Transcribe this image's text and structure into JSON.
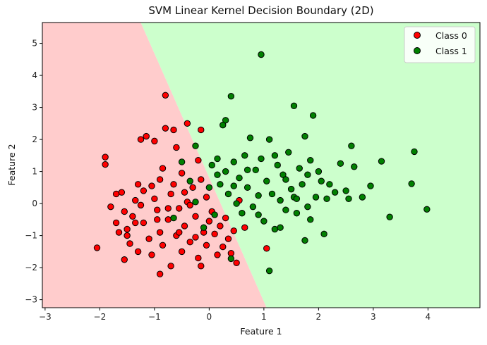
{
  "chart_data": {
    "type": "scatter",
    "title": "SVM Linear Kernel Decision Boundary (2D)",
    "xlabel": "Feature 1",
    "ylabel": "Feature 2",
    "xlim": [
      -3.05,
      4.95
    ],
    "ylim": [
      -3.25,
      5.65
    ],
    "x_ticks": [
      -3,
      -2,
      -1,
      0,
      1,
      2,
      3,
      4
    ],
    "y_ticks": [
      -3,
      -2,
      -1,
      0,
      1,
      2,
      3,
      4,
      5
    ],
    "grid": false,
    "legend_position": "top-right",
    "decision_regions": {
      "class_0_color": "#ffcccc",
      "class_1_color": "#ccffcc",
      "boundary_points": [
        [
          -1.25,
          5.65
        ],
        [
          1.05,
          -3.25
        ]
      ]
    },
    "series": [
      {
        "name": "Class 0",
        "color": "#ff0000",
        "edge_color": "#000000",
        "points": [
          [
            -2.05,
            -1.38
          ],
          [
            -1.9,
            1.45
          ],
          [
            -1.9,
            1.22
          ],
          [
            -1.7,
            0.3
          ],
          [
            -1.7,
            -0.6
          ],
          [
            -1.6,
            0.35
          ],
          [
            -1.55,
            -0.25
          ],
          [
            -1.5,
            -0.8
          ],
          [
            -1.5,
            -1.0
          ],
          [
            -1.45,
            -1.25
          ],
          [
            -1.4,
            -0.4
          ],
          [
            -1.35,
            0.1
          ],
          [
            -1.3,
            0.6
          ],
          [
            -1.3,
            -1.5
          ],
          [
            -1.25,
            2.0
          ],
          [
            -1.2,
            -0.6
          ],
          [
            -1.2,
            0.4
          ],
          [
            -1.15,
            2.1
          ],
          [
            -1.1,
            -1.1
          ],
          [
            -1.05,
            -1.6
          ],
          [
            -1.0,
            0.15
          ],
          [
            -1.0,
            1.95
          ],
          [
            -0.95,
            -0.2
          ],
          [
            -0.9,
            -0.9
          ],
          [
            -0.9,
            0.75
          ],
          [
            -0.85,
            -1.3
          ],
          [
            -0.85,
            1.1
          ],
          [
            -0.8,
            3.38
          ],
          [
            -0.8,
            2.35
          ],
          [
            -0.75,
            -0.5
          ],
          [
            -0.7,
            0.3
          ],
          [
            -0.7,
            -1.95
          ],
          [
            -0.65,
            2.3
          ],
          [
            -0.6,
            -1.0
          ],
          [
            -0.6,
            1.75
          ],
          [
            -0.55,
            -0.15
          ],
          [
            -0.5,
            0.95
          ],
          [
            -0.5,
            -1.5
          ],
          [
            -0.45,
            -0.7
          ],
          [
            -0.4,
            2.5
          ],
          [
            -0.4,
            0.05
          ],
          [
            -0.35,
            -1.2
          ],
          [
            -0.3,
            0.5
          ],
          [
            -0.25,
            -0.4
          ],
          [
            -0.2,
            1.35
          ],
          [
            -0.2,
            -1.7
          ],
          [
            -0.15,
            2.3
          ],
          [
            -0.1,
            -0.9
          ],
          [
            -0.05,
            0.2
          ],
          [
            0.0,
            -0.55
          ],
          [
            -0.9,
            -2.2
          ],
          [
            -1.55,
            -1.75
          ],
          [
            -1.8,
            -0.1
          ],
          [
            -1.65,
            -0.9
          ],
          [
            -1.35,
            -0.6
          ],
          [
            -1.25,
            -0.05
          ],
          [
            -1.05,
            0.55
          ],
          [
            -0.95,
            -0.5
          ],
          [
            -0.75,
            -0.15
          ],
          [
            -0.65,
            0.6
          ],
          [
            -0.55,
            -0.9
          ],
          [
            -0.45,
            0.35
          ],
          [
            -0.35,
            -0.05
          ],
          [
            -0.25,
            -1.05
          ],
          [
            -0.15,
            0.75
          ],
          [
            -0.05,
            -1.3
          ],
          [
            0.05,
            -0.25
          ],
          [
            0.1,
            -0.95
          ],
          [
            0.15,
            -1.6
          ],
          [
            0.2,
            -0.7
          ],
          [
            0.25,
            -1.35
          ],
          [
            0.3,
            -0.45
          ],
          [
            0.35,
            -1.1
          ],
          [
            0.4,
            -1.55
          ],
          [
            0.45,
            -0.85
          ],
          [
            0.5,
            -1.85
          ],
          [
            0.55,
            0.1
          ],
          [
            0.65,
            -0.75
          ],
          [
            1.05,
            -1.4
          ],
          [
            -0.15,
            -1.95
          ]
        ]
      },
      {
        "name": "Class 1",
        "color": "#008000",
        "edge_color": "#000000",
        "points": [
          [
            0.95,
            4.65
          ],
          [
            0.4,
            3.35
          ],
          [
            0.3,
            2.6
          ],
          [
            0.25,
            2.45
          ],
          [
            -0.25,
            1.8
          ],
          [
            0.05,
            1.2
          ],
          [
            0.15,
            0.9
          ],
          [
            0.2,
            0.6
          ],
          [
            0.3,
            1.0
          ],
          [
            0.35,
            0.3
          ],
          [
            0.45,
            1.3
          ],
          [
            0.5,
            0.0
          ],
          [
            0.55,
            0.8
          ],
          [
            0.6,
            -0.3
          ],
          [
            0.65,
            1.5
          ],
          [
            0.7,
            0.5
          ],
          [
            0.75,
            2.05
          ],
          [
            0.8,
            -0.1
          ],
          [
            0.85,
            1.05
          ],
          [
            0.9,
            0.25
          ],
          [
            0.95,
            1.4
          ],
          [
            1.0,
            -0.55
          ],
          [
            1.05,
            0.7
          ],
          [
            1.1,
            2.0
          ],
          [
            1.15,
            0.3
          ],
          [
            1.2,
            -0.8
          ],
          [
            1.25,
            1.2
          ],
          [
            1.3,
            0.1
          ],
          [
            1.35,
            0.9
          ],
          [
            1.4,
            -0.2
          ],
          [
            1.45,
            1.6
          ],
          [
            1.5,
            0.45
          ],
          [
            1.55,
            3.05
          ],
          [
            1.6,
            -0.3
          ],
          [
            1.65,
            1.1
          ],
          [
            1.7,
            0.6
          ],
          [
            1.75,
            2.1
          ],
          [
            1.8,
            -0.1
          ],
          [
            1.85,
            1.35
          ],
          [
            1.9,
            2.75
          ],
          [
            1.95,
            0.2
          ],
          [
            2.0,
            1.0
          ],
          [
            2.1,
            -0.95
          ],
          [
            2.2,
            0.6
          ],
          [
            2.3,
            0.35
          ],
          [
            2.4,
            1.25
          ],
          [
            2.55,
            0.15
          ],
          [
            2.6,
            1.8
          ],
          [
            2.65,
            1.15
          ],
          [
            2.8,
            0.2
          ],
          [
            2.95,
            0.55
          ],
          [
            3.15,
            1.32
          ],
          [
            3.3,
            -0.42
          ],
          [
            3.7,
            0.62
          ],
          [
            3.75,
            1.62
          ],
          [
            3.98,
            -0.18
          ],
          [
            1.1,
            -2.1
          ],
          [
            1.55,
            0.2
          ],
          [
            1.75,
            -1.15
          ],
          [
            1.3,
            -0.75
          ],
          [
            0.4,
            -1.72
          ],
          [
            -0.1,
            -0.75
          ],
          [
            -0.25,
            0.05
          ],
          [
            0.0,
            0.5
          ],
          [
            0.1,
            -0.35
          ],
          [
            0.45,
            0.55
          ],
          [
            0.7,
            1.05
          ],
          [
            0.9,
            -0.35
          ],
          [
            1.2,
            1.5
          ],
          [
            1.4,
            0.75
          ],
          [
            1.6,
            0.15
          ],
          [
            1.8,
            0.9
          ],
          [
            2.05,
            0.7
          ],
          [
            1.85,
            -0.5
          ],
          [
            2.15,
            0.15
          ],
          [
            2.5,
            0.4
          ],
          [
            0.15,
            1.4
          ],
          [
            -0.35,
            0.7
          ],
          [
            -0.5,
            1.3
          ],
          [
            -0.65,
            -0.45
          ]
        ]
      }
    ]
  }
}
